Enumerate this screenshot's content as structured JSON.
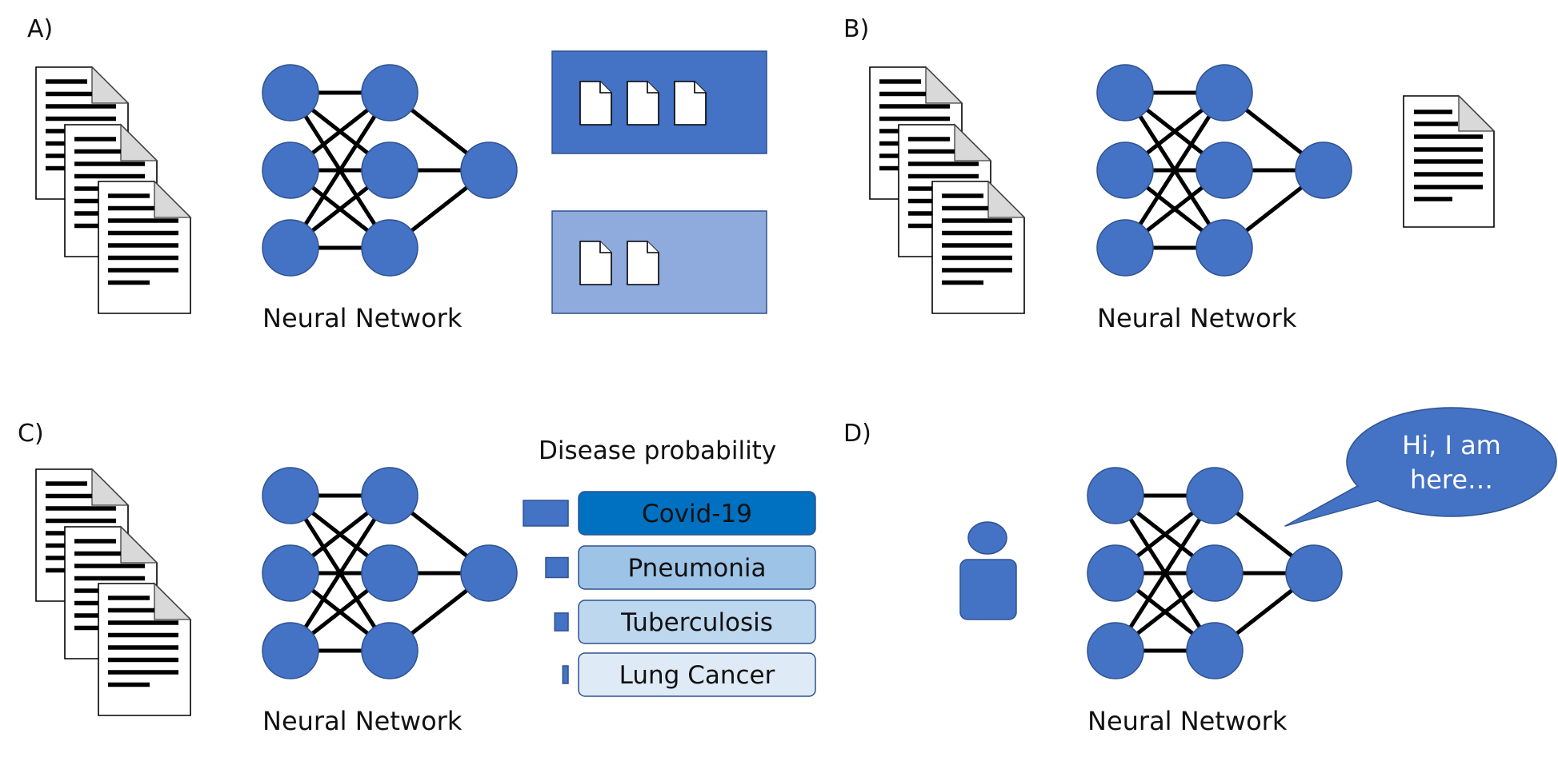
{
  "panels": [
    {
      "id": "A",
      "label": "A)",
      "caption": "Neural Network"
    },
    {
      "id": "B",
      "label": "B)",
      "caption": "Neural Network"
    },
    {
      "id": "C",
      "label": "C)",
      "caption": "Neural Network"
    },
    {
      "id": "D",
      "label": "D)",
      "caption": "Neural Network"
    }
  ],
  "panel_a": {
    "clusters": [
      {
        "file_count": 3,
        "color": "#4472c4"
      },
      {
        "file_count": 2,
        "color": "#8faadc"
      }
    ]
  },
  "panel_c": {
    "title": "Disease probability",
    "diseases": [
      {
        "name": "Covid-19",
        "probability": 1.0,
        "fill": "#0070c0"
      },
      {
        "name": "Pneumonia",
        "probability": 0.5,
        "fill": "#9dc3e6"
      },
      {
        "name": "Tuberculosis",
        "probability": 0.3,
        "fill": "#bdd7ee"
      },
      {
        "name": "Lung Cancer",
        "probability": 0.12,
        "fill": "#deebf7"
      }
    ]
  },
  "panel_d": {
    "speech_lines": [
      "Hi, I am",
      "here…"
    ]
  },
  "colors": {
    "node": "#4472c4",
    "edge": "#000000"
  },
  "icons": [
    "document-stack-icon",
    "output-document-icon",
    "person-icon",
    "speech-bubble-icon"
  ]
}
